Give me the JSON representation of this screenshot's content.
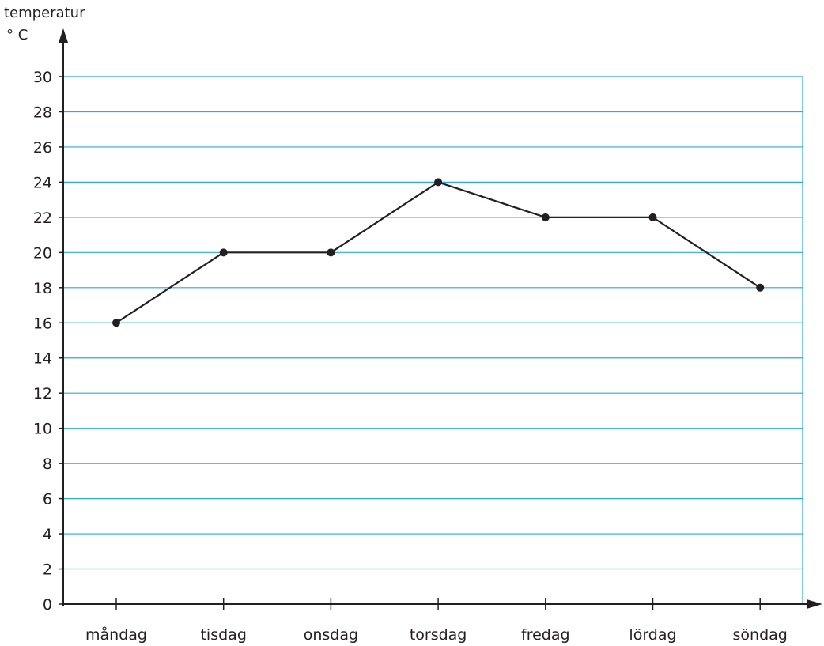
{
  "chart_data": {
    "type": "line",
    "title": "",
    "ylabel": "temperatur",
    "yunit": "° C",
    "xlabel": "",
    "categories": [
      "måndag",
      "tisdag",
      "onsdag",
      "torsdag",
      "fredag",
      "lördag",
      "söndag"
    ],
    "series": [
      {
        "values": [
          16,
          20,
          20,
          24,
          22,
          22,
          18
        ]
      }
    ],
    "ylim": [
      0,
      30
    ],
    "yticks": [
      0,
      2,
      4,
      6,
      8,
      10,
      12,
      14,
      16,
      18,
      20,
      22,
      24,
      26,
      28,
      30
    ],
    "grid": "horizontal",
    "legend": "none"
  },
  "colors": {
    "grid": "#29a9df",
    "axis": "#231f20",
    "line": "#231f20",
    "marker": "#231f20"
  }
}
